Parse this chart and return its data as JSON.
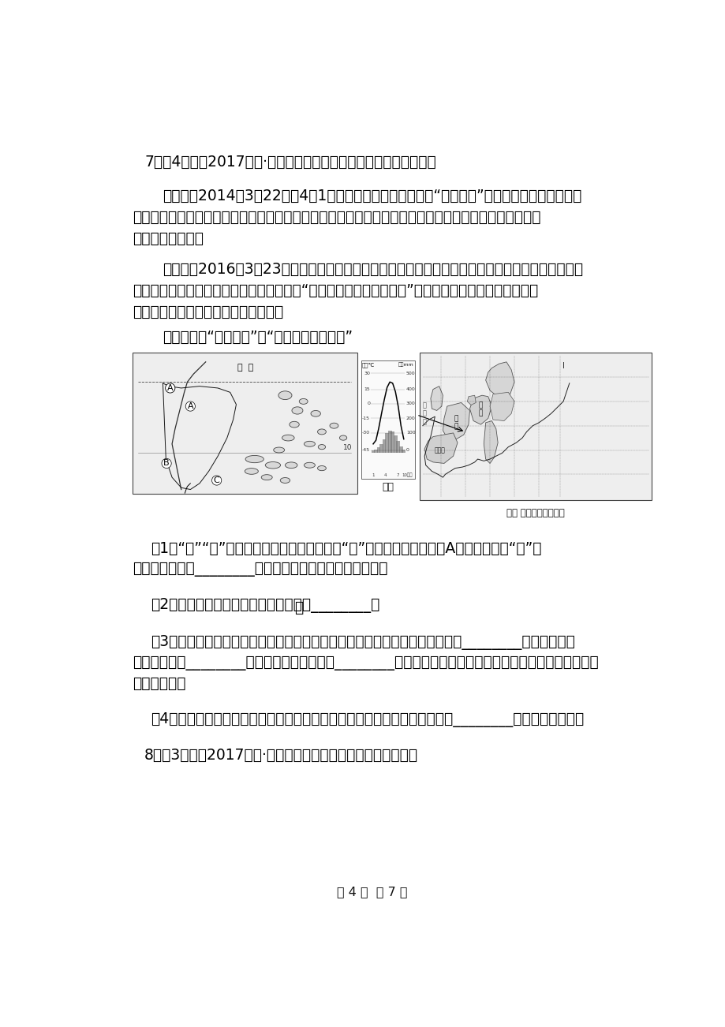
{
  "background_color": "#ffffff",
  "page_width": 9.2,
  "page_height": 13.02,
  "q7_header": "7．（4分）（2017九下·陵城会考）阅读下列图文资料，回答问题。",
  "mat1_line1": "材料一：2014年3月22日至4月1日，国家主席习近平应邀对“欧洲四国”（荷兰、法国、德国、比",
  "mat1_line2": "利时）进行国事访问，并访问了联合国教科文组织总部和欧盟总部。这是习近平就任中国最高领导人以来",
  "mat1_line3": "的首次访欧之旅。",
  "mat2_line1": "材料二：2016年3月23日上午，李克强总理在海南三亚国际会议中心主持澜湄合作首次领导人会议，",
  "mat2_line2": "同与会泰、柬、老、缸、越五国领导人围绕“同饮一江水，命运紧相连”的会议主题，共商澜湄合作发展",
  "mat2_line3": "大计。由此，这六国被称为澜湄国家。",
  "mat3_label": "材料三：读“东南亚图”和“欧洲西部国家略图”",
  "map_china": "中  国",
  "map_label_A": "A",
  "map_label_B": "B",
  "map_label_C": "C",
  "chart_temp_label": "气温℃",
  "chart_rain_label": "降水mm",
  "chart_caption": "图甲",
  "map2_caption": "图乙 欧洲西部国家略图",
  "map2_france": "法\n国",
  "map2_germany": "德\n国",
  "map2_spain": "西班牙",
  "map2_atlantic": "大\n西\n洋",
  "q1_line1": "（1）“澜”“湄”是一条河流不同河段的名称，“澜”是指图中中国境内的A河流澜沧江，“湄”是",
  "q1_line2": "指中南半岛上的________，它是亚洲流经国家最多的河流。",
  "q2_text": "（2）据图可知，中南半岛的地形特点是________。",
  "q3_line1": "（3）气候是影响农业生产最主要的因素。东南亚气候湿热，种植的粮食作物是________；而欧洲西部",
  "q3_line2": "大西洋沿岸受________（气候类型）的影响，________业（农业部门）发达，餐桌上常常可见牛排、牛奶、",
  "q3_line3": "乳酪等食品。",
  "q4_text": "（4）图示两地区旅游资源都很丰富，如果到欧洲西部的法国能看到的景点有________（写一个即可）。",
  "q8_text": "8．（3分）（2017七下·洛阳期末）读左图、右图，回答问题。",
  "footer_text": "第 4 页  共 7 页"
}
